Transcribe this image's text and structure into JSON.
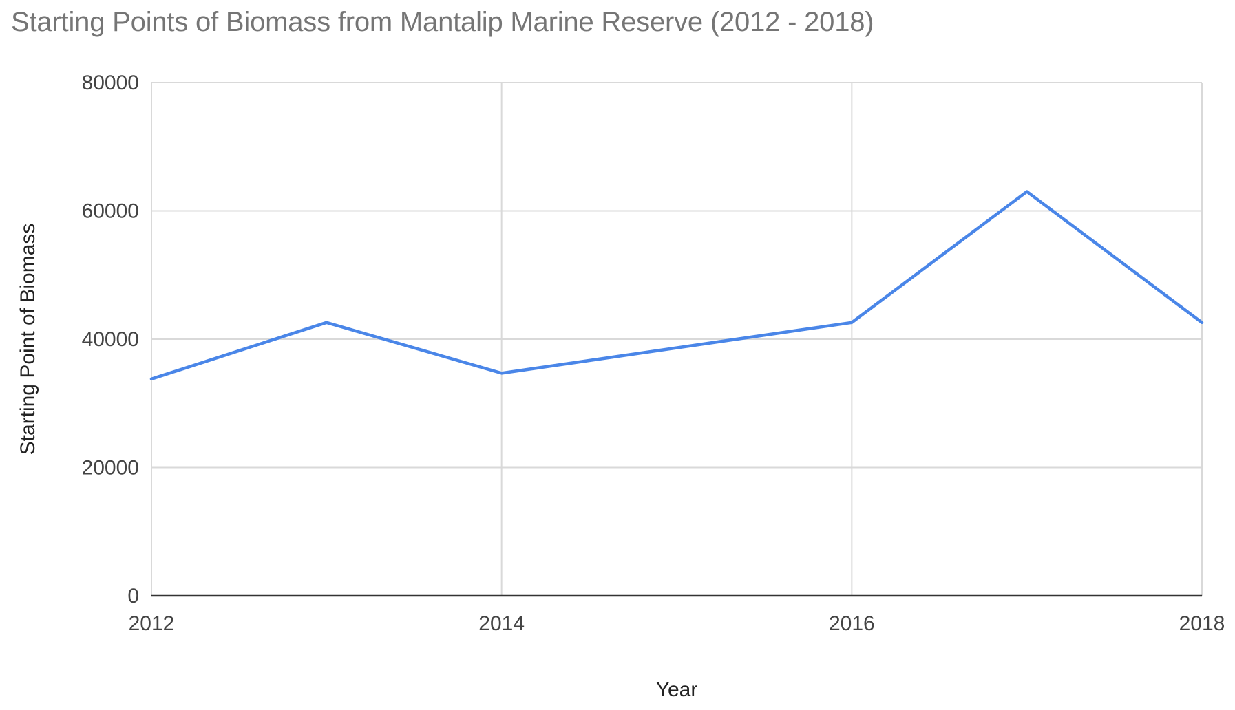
{
  "chart_data": {
    "type": "line",
    "title": "Starting Points of Biomass from Mantalip Marine Reserve (2012 - 2018)",
    "xlabel": "Year",
    "ylabel": "Starting Point of Biomass",
    "x": [
      2012,
      2013,
      2014,
      2015,
      2016,
      2017,
      2018
    ],
    "xlim": [
      2012,
      2018
    ],
    "x_ticks": [
      "2012",
      "2014",
      "2016",
      "2018"
    ],
    "ylim": [
      0,
      80000
    ],
    "y_ticks": [
      "0",
      "20000",
      "40000",
      "60000",
      "80000"
    ],
    "series": [
      {
        "values": [
          33800,
          42600,
          34700,
          null,
          42600,
          63000,
          42600
        ],
        "color": "#4a86e8"
      }
    ],
    "grid": true,
    "legend": "none"
  }
}
